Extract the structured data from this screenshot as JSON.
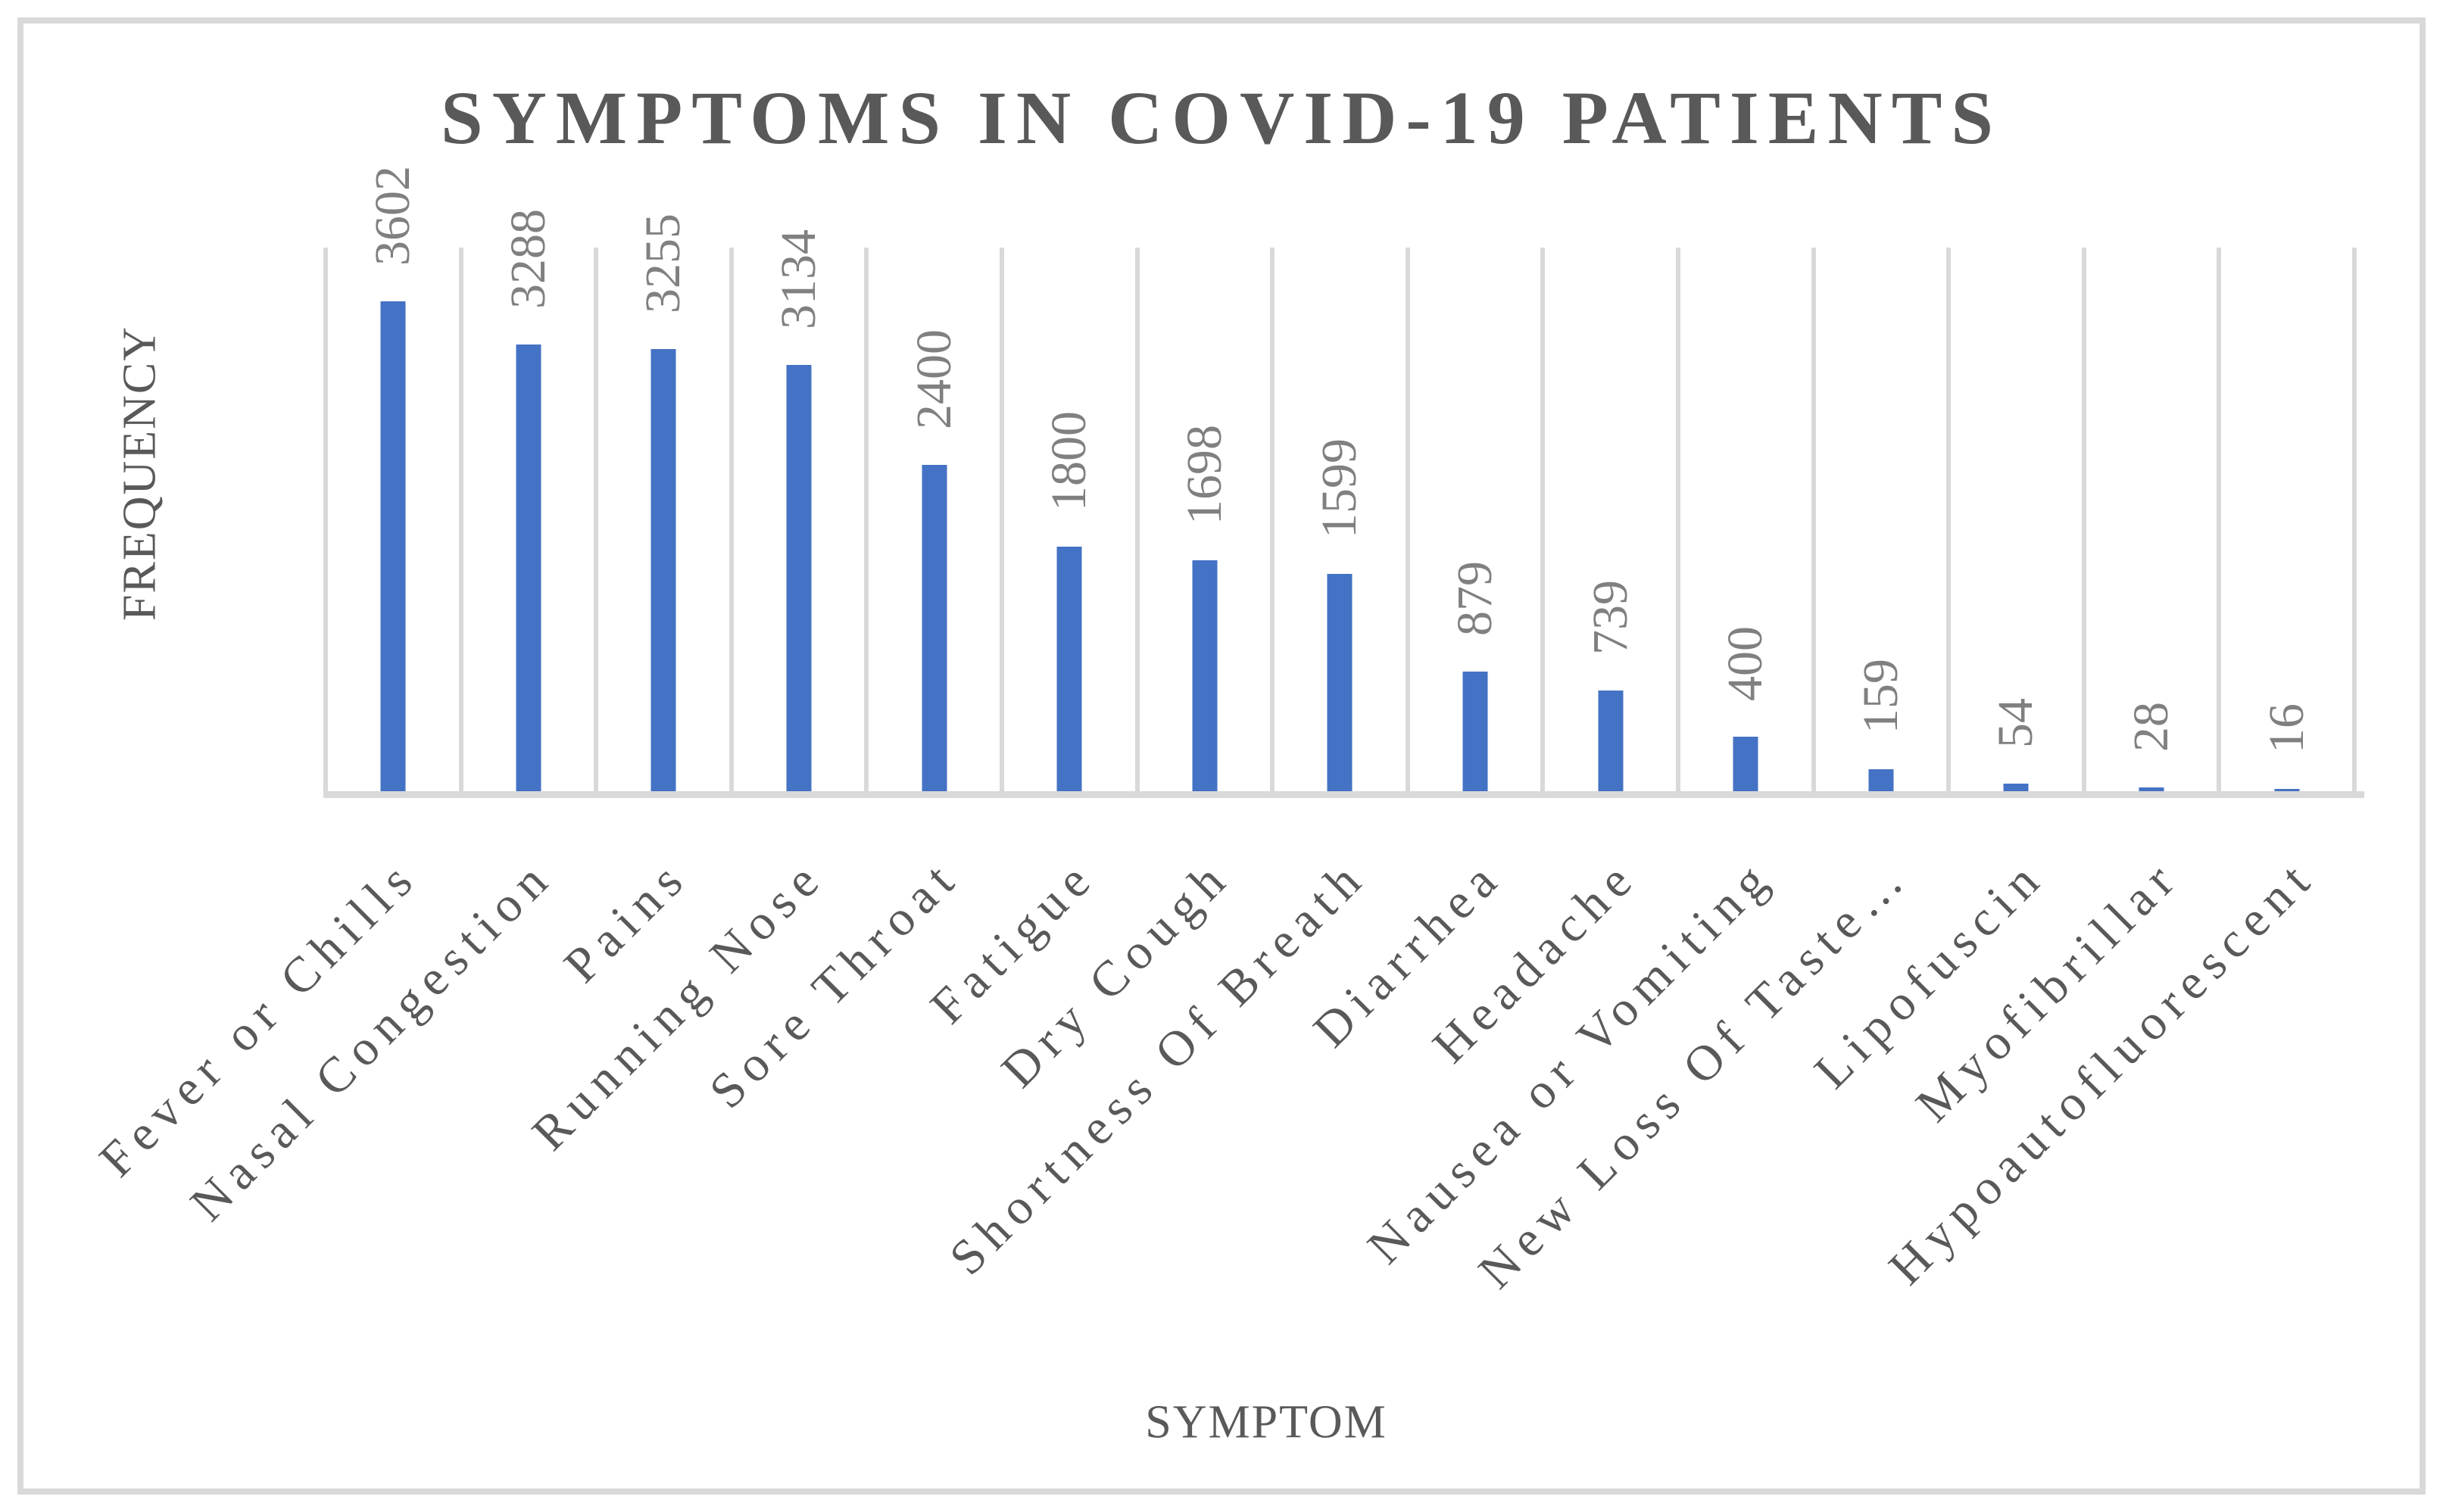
{
  "chart_data": {
    "type": "bar",
    "title": "SYMPTOMS IN COVID-19 PATIENTS",
    "xlabel": "SYMPTOM",
    "ylabel": "FREQUENCY",
    "categories": [
      "Fever or Chills",
      "Nasal Congestion",
      "Pains",
      "Running Nose",
      "Sore Throat",
      "Fatigue",
      "Dry Cough",
      "Shortness Of Breath",
      "Diarrhea",
      "Headache",
      "Nausea or Vomiting",
      "New Loss Of Taste…",
      "Lipofuscin",
      "Myofibrillar",
      "Hypoautofluorescent"
    ],
    "values": [
      3602,
      3288,
      3255,
      3134,
      2400,
      1800,
      1698,
      1599,
      879,
      739,
      400,
      159,
      54,
      28,
      16
    ],
    "ylim": [
      0,
      4000
    ],
    "grid": "vertical category boundary gridlines only",
    "legend_position": "none",
    "data_label_style": "value rotated 90deg above each bar",
    "category_label_rotation_deg": -45,
    "bar_color": "#4472C4",
    "gridline_color": "#D9D9D9",
    "title_color": "#595959",
    "data_label_color": "#808080",
    "axis_text_color": "#595959"
  }
}
